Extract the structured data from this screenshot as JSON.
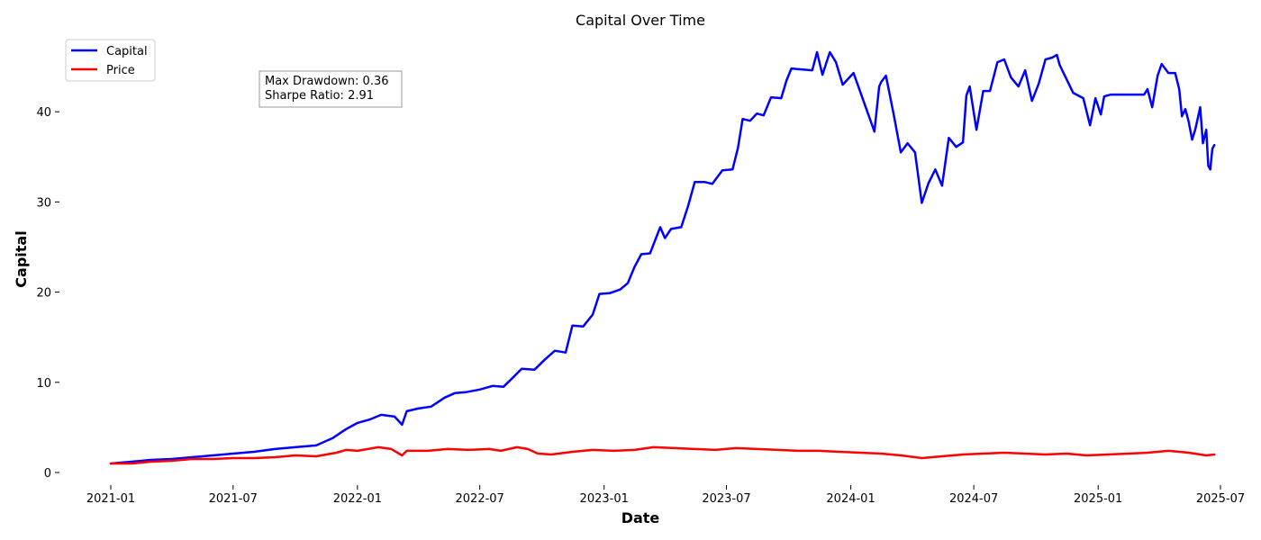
{
  "chart_data": {
    "type": "line",
    "title": "Capital Over Time",
    "xlabel": "Date",
    "ylabel": "Capital",
    "xlim": [
      "2021-01-01",
      "2025-07-01"
    ],
    "ylim": [
      0,
      48
    ],
    "x_ticks": [
      "2021-01",
      "2021-07",
      "2022-01",
      "2022-07",
      "2023-01",
      "2023-07",
      "2024-01",
      "2024-07",
      "2025-01",
      "2025-07"
    ],
    "y_ticks": [
      0,
      10,
      20,
      30,
      40
    ],
    "legend_position": "top-left",
    "grid": false,
    "stats_box": [
      "Max Drawdown: 0.36",
      "Sharpe Ratio: 2.91"
    ],
    "series": [
      {
        "name": "Capital",
        "color": "#0000ff",
        "points": [
          [
            "2021-01-01",
            1.0
          ],
          [
            "2021-02-01",
            1.2
          ],
          [
            "2021-03-01",
            1.4
          ],
          [
            "2021-04-01",
            1.5
          ],
          [
            "2021-05-01",
            1.7
          ],
          [
            "2021-06-01",
            1.9
          ],
          [
            "2021-07-01",
            2.1
          ],
          [
            "2021-08-01",
            2.3
          ],
          [
            "2021-09-01",
            2.6
          ],
          [
            "2021-10-01",
            2.8
          ],
          [
            "2021-11-01",
            3.0
          ],
          [
            "2021-11-25",
            3.8
          ],
          [
            "2021-12-15",
            4.8
          ],
          [
            "2022-01-01",
            5.5
          ],
          [
            "2022-01-20",
            5.9
          ],
          [
            "2022-02-05",
            6.4
          ],
          [
            "2022-02-25",
            6.2
          ],
          [
            "2022-03-08",
            5.3
          ],
          [
            "2022-03-15",
            6.8
          ],
          [
            "2022-04-01",
            7.1
          ],
          [
            "2022-04-20",
            7.3
          ],
          [
            "2022-05-10",
            8.3
          ],
          [
            "2022-05-25",
            8.8
          ],
          [
            "2022-06-10",
            8.9
          ],
          [
            "2022-07-01",
            9.2
          ],
          [
            "2022-07-20",
            9.6
          ],
          [
            "2022-08-05",
            9.5
          ],
          [
            "2022-08-20",
            10.6
          ],
          [
            "2022-09-01",
            11.5
          ],
          [
            "2022-09-20",
            11.4
          ],
          [
            "2022-10-05",
            12.5
          ],
          [
            "2022-10-20",
            13.5
          ],
          [
            "2022-11-05",
            13.3
          ],
          [
            "2022-11-15",
            16.3
          ],
          [
            "2022-12-01",
            16.2
          ],
          [
            "2022-12-15",
            17.5
          ],
          [
            "2022-12-25",
            19.8
          ],
          [
            "2023-01-10",
            19.9
          ],
          [
            "2023-01-25",
            20.3
          ],
          [
            "2023-02-05",
            21.0
          ],
          [
            "2023-02-15",
            22.8
          ],
          [
            "2023-02-25",
            24.2
          ],
          [
            "2023-03-10",
            24.3
          ],
          [
            "2023-03-25",
            27.2
          ],
          [
            "2023-04-01",
            26.0
          ],
          [
            "2023-04-10",
            27.0
          ],
          [
            "2023-04-25",
            27.2
          ],
          [
            "2023-05-05",
            29.5
          ],
          [
            "2023-05-15",
            32.2
          ],
          [
            "2023-05-30",
            32.2
          ],
          [
            "2023-06-10",
            32.0
          ],
          [
            "2023-06-25",
            33.5
          ],
          [
            "2023-07-10",
            33.6
          ],
          [
            "2023-07-18",
            36.0
          ],
          [
            "2023-07-25",
            39.2
          ],
          [
            "2023-08-05",
            39.0
          ],
          [
            "2023-08-15",
            39.8
          ],
          [
            "2023-08-25",
            39.6
          ],
          [
            "2023-09-05",
            41.6
          ],
          [
            "2023-09-20",
            41.5
          ],
          [
            "2023-09-28",
            43.5
          ],
          [
            "2023-10-05",
            44.8
          ],
          [
            "2023-10-20",
            44.7
          ],
          [
            "2023-11-05",
            44.6
          ],
          [
            "2023-11-12",
            46.6
          ],
          [
            "2023-11-20",
            44.1
          ],
          [
            "2023-12-01",
            46.6
          ],
          [
            "2023-12-10",
            45.5
          ],
          [
            "2023-12-20",
            43.0
          ],
          [
            "2024-01-05",
            44.3
          ],
          [
            "2024-01-15",
            42.2
          ],
          [
            "2024-01-25",
            40.1
          ],
          [
            "2024-02-05",
            37.8
          ],
          [
            "2024-02-12",
            42.8
          ],
          [
            "2024-02-15",
            43.3
          ],
          [
            "2024-02-22",
            44.0
          ],
          [
            "2024-03-05",
            39.5
          ],
          [
            "2024-03-15",
            35.5
          ],
          [
            "2024-03-25",
            36.5
          ],
          [
            "2024-04-05",
            35.5
          ],
          [
            "2024-04-15",
            29.9
          ],
          [
            "2024-04-25",
            32.1
          ],
          [
            "2024-05-05",
            33.6
          ],
          [
            "2024-05-15",
            31.8
          ],
          [
            "2024-05-25",
            37.1
          ],
          [
            "2024-06-05",
            36.1
          ],
          [
            "2024-06-15",
            36.6
          ],
          [
            "2024-06-20",
            41.8
          ],
          [
            "2024-06-25",
            42.8
          ],
          [
            "2024-07-05",
            38.0
          ],
          [
            "2024-07-15",
            42.3
          ],
          [
            "2024-07-25",
            42.3
          ],
          [
            "2024-08-05",
            45.5
          ],
          [
            "2024-08-15",
            45.8
          ],
          [
            "2024-08-25",
            43.8
          ],
          [
            "2024-09-05",
            42.8
          ],
          [
            "2024-09-15",
            44.6
          ],
          [
            "2024-09-25",
            41.2
          ],
          [
            "2024-10-05",
            43.1
          ],
          [
            "2024-10-15",
            45.8
          ],
          [
            "2024-10-25",
            46.0
          ],
          [
            "2024-11-01",
            46.3
          ],
          [
            "2024-11-05",
            45.2
          ],
          [
            "2024-11-25",
            42.1
          ],
          [
            "2024-12-10",
            41.5
          ],
          [
            "2024-12-20",
            38.5
          ],
          [
            "2024-12-28",
            41.5
          ],
          [
            "2025-01-05",
            39.7
          ],
          [
            "2025-01-10",
            41.7
          ],
          [
            "2025-01-20",
            41.9
          ],
          [
            "2025-02-15",
            41.9
          ],
          [
            "2025-03-10",
            41.9
          ],
          [
            "2025-03-15",
            42.5
          ],
          [
            "2025-03-22",
            40.5
          ],
          [
            "2025-03-30",
            44.0
          ],
          [
            "2025-04-05",
            45.3
          ],
          [
            "2025-04-15",
            44.3
          ],
          [
            "2025-04-25",
            44.3
          ],
          [
            "2025-05-01",
            42.5
          ],
          [
            "2025-05-05",
            39.5
          ],
          [
            "2025-05-10",
            40.3
          ],
          [
            "2025-05-15",
            38.9
          ],
          [
            "2025-05-20",
            36.9
          ],
          [
            "2025-05-25",
            38.1
          ],
          [
            "2025-06-01",
            40.5
          ],
          [
            "2025-06-05",
            36.5
          ],
          [
            "2025-06-10",
            38.0
          ],
          [
            "2025-06-13",
            34.0
          ],
          [
            "2025-06-16",
            33.6
          ],
          [
            "2025-06-19",
            35.9
          ],
          [
            "2025-06-22",
            36.3
          ]
        ]
      },
      {
        "name": "Price",
        "color": "#ff0000",
        "points": [
          [
            "2021-01-01",
            1.0
          ],
          [
            "2021-02-01",
            1.0
          ],
          [
            "2021-03-01",
            1.2
          ],
          [
            "2021-04-01",
            1.3
          ],
          [
            "2021-05-01",
            1.5
          ],
          [
            "2021-06-01",
            1.5
          ],
          [
            "2021-07-01",
            1.6
          ],
          [
            "2021-08-01",
            1.6
          ],
          [
            "2021-09-01",
            1.7
          ],
          [
            "2021-10-01",
            1.9
          ],
          [
            "2021-11-01",
            1.8
          ],
          [
            "2021-12-01",
            2.2
          ],
          [
            "2021-12-15",
            2.5
          ],
          [
            "2022-01-01",
            2.4
          ],
          [
            "2022-02-01",
            2.8
          ],
          [
            "2022-02-20",
            2.6
          ],
          [
            "2022-03-08",
            1.9
          ],
          [
            "2022-03-15",
            2.4
          ],
          [
            "2022-04-15",
            2.4
          ],
          [
            "2022-05-15",
            2.6
          ],
          [
            "2022-06-15",
            2.5
          ],
          [
            "2022-07-15",
            2.6
          ],
          [
            "2022-08-01",
            2.4
          ],
          [
            "2022-08-25",
            2.8
          ],
          [
            "2022-09-10",
            2.6
          ],
          [
            "2022-09-25",
            2.1
          ],
          [
            "2022-10-15",
            2.0
          ],
          [
            "2022-11-15",
            2.3
          ],
          [
            "2022-12-15",
            2.5
          ],
          [
            "2023-01-15",
            2.4
          ],
          [
            "2023-02-15",
            2.5
          ],
          [
            "2023-03-15",
            2.8
          ],
          [
            "2023-04-15",
            2.7
          ],
          [
            "2023-05-15",
            2.6
          ],
          [
            "2023-06-15",
            2.5
          ],
          [
            "2023-07-15",
            2.7
          ],
          [
            "2023-08-15",
            2.6
          ],
          [
            "2023-09-15",
            2.5
          ],
          [
            "2023-10-15",
            2.4
          ],
          [
            "2023-11-15",
            2.4
          ],
          [
            "2023-12-15",
            2.3
          ],
          [
            "2024-01-15",
            2.2
          ],
          [
            "2024-02-15",
            2.1
          ],
          [
            "2024-03-15",
            1.9
          ],
          [
            "2024-04-15",
            1.6
          ],
          [
            "2024-05-15",
            1.8
          ],
          [
            "2024-06-15",
            2.0
          ],
          [
            "2024-07-15",
            2.1
          ],
          [
            "2024-08-15",
            2.2
          ],
          [
            "2024-09-15",
            2.1
          ],
          [
            "2024-10-15",
            2.0
          ],
          [
            "2024-11-15",
            2.1
          ],
          [
            "2024-12-15",
            1.9
          ],
          [
            "2025-01-15",
            2.0
          ],
          [
            "2025-02-15",
            2.1
          ],
          [
            "2025-03-15",
            2.2
          ],
          [
            "2025-04-15",
            2.4
          ],
          [
            "2025-05-15",
            2.2
          ],
          [
            "2025-06-10",
            1.9
          ],
          [
            "2025-06-22",
            2.0
          ]
        ]
      }
    ]
  }
}
